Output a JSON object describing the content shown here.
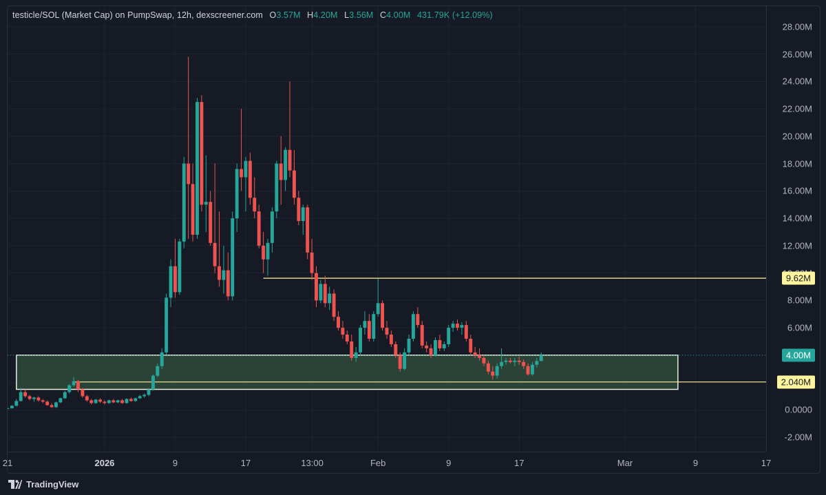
{
  "header": {
    "title": "testicle/SOL (Market Cap) on PumpSwap, 12h, dexscreener.com",
    "o_label": "O",
    "o_value": "3.57M",
    "h_label": "H",
    "h_value": "4.20M",
    "l_label": "L",
    "l_value": "3.56M",
    "c_label": "C",
    "c_value": "4.00M",
    "change": "431.79K (+12.09%)"
  },
  "footer": {
    "brand": "TradingView",
    "logo_icon": "tradingview-logo-icon"
  },
  "colors": {
    "up": "#26a69a",
    "down": "#ef5350",
    "background": "#161a25",
    "highlight_line": "#fff59d",
    "zone_fill": "#2f4a3a",
    "zone_border": "#e8f0e0"
  },
  "chart_data": {
    "type": "candlestick",
    "title": "testicle/SOL (Market Cap) on PumpSwap, 12h, dexscreener.com",
    "ylim": [
      -3.0,
      29.5
    ],
    "y_unit": "M",
    "y_ticks": [
      "28.00M",
      "26.00M",
      "24.00M",
      "22.00M",
      "20.00M",
      "18.00M",
      "16.00M",
      "14.00M",
      "12.00M",
      "10.00M",
      "8.00M",
      "6.00M",
      "4.00M",
      "2.00M",
      "0.0000",
      "-2.00M"
    ],
    "y_tick_values": [
      28,
      26,
      24,
      22,
      20,
      18,
      16,
      14,
      12,
      10,
      8,
      6,
      4,
      2,
      0,
      -2
    ],
    "x_ticks": [
      {
        "label": "21",
        "date": "2025-12-21"
      },
      {
        "label": "2026",
        "date": "2026-01-01",
        "bold": true
      },
      {
        "label": "9",
        "date": "2026-01-09"
      },
      {
        "label": "17",
        "date": "2026-01-17"
      },
      {
        "label": "13:00",
        "date": "2026-01-24T13:00"
      },
      {
        "label": "Feb",
        "date": "2026-02-01"
      },
      {
        "label": "9",
        "date": "2026-02-09"
      },
      {
        "label": "17",
        "date": "2026-02-17"
      },
      {
        "label": "Mar",
        "date": "2026-03-01"
      },
      {
        "label": "9",
        "date": "2026-03-09"
      },
      {
        "label": "17",
        "date": "2026-03-17"
      }
    ],
    "xlim": [
      "2025-12-21T00:00",
      "2026-03-17T00:00"
    ],
    "first_candle": "2025-12-21T00:00",
    "candle_interval": "12h",
    "candles": [
      [
        0.1,
        0.15,
        0.05,
        0.12
      ],
      [
        0.12,
        0.35,
        0.1,
        0.3
      ],
      [
        0.3,
        0.8,
        0.25,
        0.65
      ],
      [
        0.65,
        1.6,
        0.6,
        1.3
      ],
      [
        1.3,
        1.5,
        0.9,
        1.0
      ],
      [
        1.0,
        1.1,
        0.7,
        0.8
      ],
      [
        0.8,
        0.95,
        0.6,
        0.9
      ],
      [
        0.9,
        1.0,
        0.6,
        0.7
      ],
      [
        0.7,
        0.8,
        0.5,
        0.6
      ],
      [
        0.6,
        0.7,
        0.3,
        0.35
      ],
      [
        0.35,
        0.5,
        0.15,
        0.2
      ],
      [
        0.2,
        0.6,
        0.15,
        0.55
      ],
      [
        0.55,
        0.9,
        0.5,
        0.85
      ],
      [
        0.85,
        1.4,
        0.8,
        1.3
      ],
      [
        1.3,
        1.9,
        1.2,
        1.8
      ],
      [
        1.8,
        2.4,
        1.7,
        2.1
      ],
      [
        2.1,
        2.2,
        1.3,
        1.5
      ],
      [
        1.5,
        1.6,
        0.9,
        1.0
      ],
      [
        1.0,
        1.1,
        0.6,
        0.7
      ],
      [
        0.7,
        0.8,
        0.4,
        0.5
      ],
      [
        0.5,
        0.8,
        0.45,
        0.75
      ],
      [
        0.75,
        0.85,
        0.5,
        0.6
      ],
      [
        0.6,
        0.7,
        0.4,
        0.5
      ],
      [
        0.5,
        0.75,
        0.45,
        0.7
      ],
      [
        0.7,
        0.8,
        0.5,
        0.55
      ],
      [
        0.55,
        0.75,
        0.5,
        0.7
      ],
      [
        0.7,
        0.8,
        0.45,
        0.5
      ],
      [
        0.5,
        0.85,
        0.45,
        0.8
      ],
      [
        0.8,
        0.9,
        0.6,
        0.65
      ],
      [
        0.65,
        0.9,
        0.6,
        0.85
      ],
      [
        0.85,
        1.1,
        0.8,
        1.0
      ],
      [
        1.0,
        1.2,
        0.9,
        1.1
      ],
      [
        1.1,
        1.6,
        1.0,
        1.5
      ],
      [
        1.5,
        2.6,
        1.4,
        2.5
      ],
      [
        2.5,
        3.4,
        2.4,
        3.2
      ],
      [
        3.2,
        4.5,
        3.0,
        4.2
      ],
      [
        4.2,
        8.5,
        4.0,
        8.2
      ],
      [
        8.2,
        11.0,
        7.5,
        10.5
      ],
      [
        10.5,
        12.5,
        8.2,
        8.6
      ],
      [
        8.6,
        12.5,
        8.4,
        12.3
      ],
      [
        12.3,
        18.5,
        11.8,
        18.0
      ],
      [
        18.0,
        25.8,
        12.5,
        16.5
      ],
      [
        16.5,
        18.0,
        12.3,
        12.8
      ],
      [
        12.8,
        22.8,
        12.5,
        22.5
      ],
      [
        22.5,
        23.0,
        14.5,
        15.0
      ],
      [
        15.0,
        18.6,
        13.0,
        15.2
      ],
      [
        15.2,
        16.0,
        12.0,
        12.2
      ],
      [
        12.2,
        18.0,
        10.0,
        10.5
      ],
      [
        10.5,
        14.5,
        9.0,
        9.5
      ],
      [
        9.5,
        12.0,
        8.5,
        10.2
      ],
      [
        10.2,
        11.5,
        8.0,
        8.3
      ],
      [
        8.3,
        14.5,
        8.0,
        14.0
      ],
      [
        14.0,
        18.0,
        13.0,
        17.6
      ],
      [
        17.6,
        22.0,
        16.0,
        17.0
      ],
      [
        17.0,
        18.5,
        14.5,
        18.2
      ],
      [
        18.2,
        18.8,
        15.0,
        15.5
      ],
      [
        15.5,
        17.0,
        14.0,
        14.5
      ],
      [
        14.5,
        15.0,
        11.8,
        12.0
      ],
      [
        12.0,
        13.0,
        10.0,
        11.0
      ],
      [
        11.0,
        12.5,
        9.8,
        12.2
      ],
      [
        12.2,
        14.8,
        11.5,
        14.5
      ],
      [
        14.5,
        18.2,
        14.0,
        18.0
      ],
      [
        18.0,
        20.0,
        15.0,
        16.8
      ],
      [
        16.8,
        19.2,
        16.0,
        19.0
      ],
      [
        19.0,
        24.0,
        17.0,
        17.5
      ],
      [
        17.5,
        19.0,
        15.0,
        15.5
      ],
      [
        15.5,
        16.0,
        13.5,
        13.8
      ],
      [
        13.8,
        15.0,
        12.8,
        14.8
      ],
      [
        14.8,
        15.0,
        11.0,
        11.5
      ],
      [
        11.5,
        12.5,
        9.5,
        10.0
      ],
      [
        10.0,
        10.5,
        7.5,
        8.0
      ],
      [
        8.0,
        9.5,
        7.8,
        9.2
      ],
      [
        9.2,
        9.8,
        7.5,
        7.8
      ],
      [
        7.8,
        9.0,
        7.3,
        8.5
      ],
      [
        8.5,
        8.8,
        6.5,
        6.8
      ],
      [
        6.8,
        7.2,
        5.8,
        6.0
      ],
      [
        6.0,
        6.5,
        5.2,
        5.5
      ],
      [
        5.5,
        5.8,
        4.8,
        5.0
      ],
      [
        5.0,
        5.5,
        3.6,
        3.8
      ],
      [
        3.8,
        4.6,
        3.5,
        4.2
      ],
      [
        4.2,
        6.2,
        4.0,
        6.0
      ],
      [
        6.0,
        7.2,
        5.5,
        6.5
      ],
      [
        6.5,
        7.0,
        5.0,
        5.2
      ],
      [
        5.2,
        7.2,
        5.0,
        7.0
      ],
      [
        7.0,
        9.6,
        6.8,
        7.8
      ],
      [
        7.8,
        8.0,
        5.8,
        6.0
      ],
      [
        6.0,
        6.5,
        5.2,
        5.5
      ],
      [
        5.5,
        5.8,
        4.6,
        4.8
      ],
      [
        4.8,
        5.0,
        3.8,
        4.0
      ],
      [
        4.0,
        4.2,
        2.8,
        3.0
      ],
      [
        3.0,
        4.5,
        2.9,
        4.2
      ],
      [
        4.2,
        5.5,
        4.0,
        5.2
      ],
      [
        5.2,
        7.2,
        5.0,
        7.0
      ],
      [
        7.0,
        7.5,
        6.0,
        6.2
      ],
      [
        6.2,
        6.5,
        4.5,
        4.7
      ],
      [
        4.7,
        5.0,
        4.2,
        4.5
      ],
      [
        4.5,
        4.8,
        3.8,
        4.0
      ],
      [
        4.0,
        5.3,
        3.9,
        5.1
      ],
      [
        5.1,
        5.5,
        4.3,
        4.5
      ],
      [
        4.5,
        5.0,
        4.3,
        4.8
      ],
      [
        4.8,
        6.2,
        4.6,
        6.0
      ],
      [
        6.0,
        6.5,
        5.7,
        6.3
      ],
      [
        6.3,
        6.6,
        5.8,
        6.0
      ],
      [
        6.0,
        6.4,
        5.5,
        6.2
      ],
      [
        6.2,
        6.5,
        5.0,
        5.2
      ],
      [
        5.2,
        5.5,
        4.0,
        4.2
      ],
      [
        4.2,
        4.6,
        3.8,
        4.0
      ],
      [
        4.0,
        4.5,
        3.6,
        3.8
      ],
      [
        3.8,
        4.0,
        3.2,
        3.4
      ],
      [
        3.4,
        3.6,
        2.6,
        2.8
      ],
      [
        2.8,
        3.2,
        2.2,
        2.5
      ],
      [
        2.5,
        3.4,
        2.3,
        3.2
      ],
      [
        3.2,
        4.5,
        3.0,
        3.5
      ],
      [
        3.5,
        3.8,
        3.3,
        3.6
      ],
      [
        3.6,
        3.8,
        3.4,
        3.5
      ],
      [
        3.5,
        3.8,
        3.2,
        3.6
      ],
      [
        3.6,
        3.9,
        3.3,
        3.5
      ],
      [
        3.5,
        3.7,
        3.0,
        3.2
      ],
      [
        3.2,
        3.4,
        2.5,
        2.6
      ],
      [
        2.6,
        3.5,
        2.5,
        3.3
      ],
      [
        3.3,
        3.8,
        3.1,
        3.57
      ],
      [
        3.57,
        4.2,
        3.56,
        4.0
      ]
    ],
    "zone": {
      "start": "2025-12-22T00:00",
      "end": "2026-03-07T00:00",
      "y_low": 1.5,
      "y_high": 4.0
    },
    "horizontal_lines": [
      {
        "start": "2026-01-19T00:00",
        "value": 9.62,
        "label": "9.62M"
      },
      {
        "start": "2025-12-28T12:00",
        "value": 2.04,
        "label": "2.040M"
      }
    ],
    "last_price": {
      "value": 4.0,
      "label": "4.00M"
    }
  }
}
